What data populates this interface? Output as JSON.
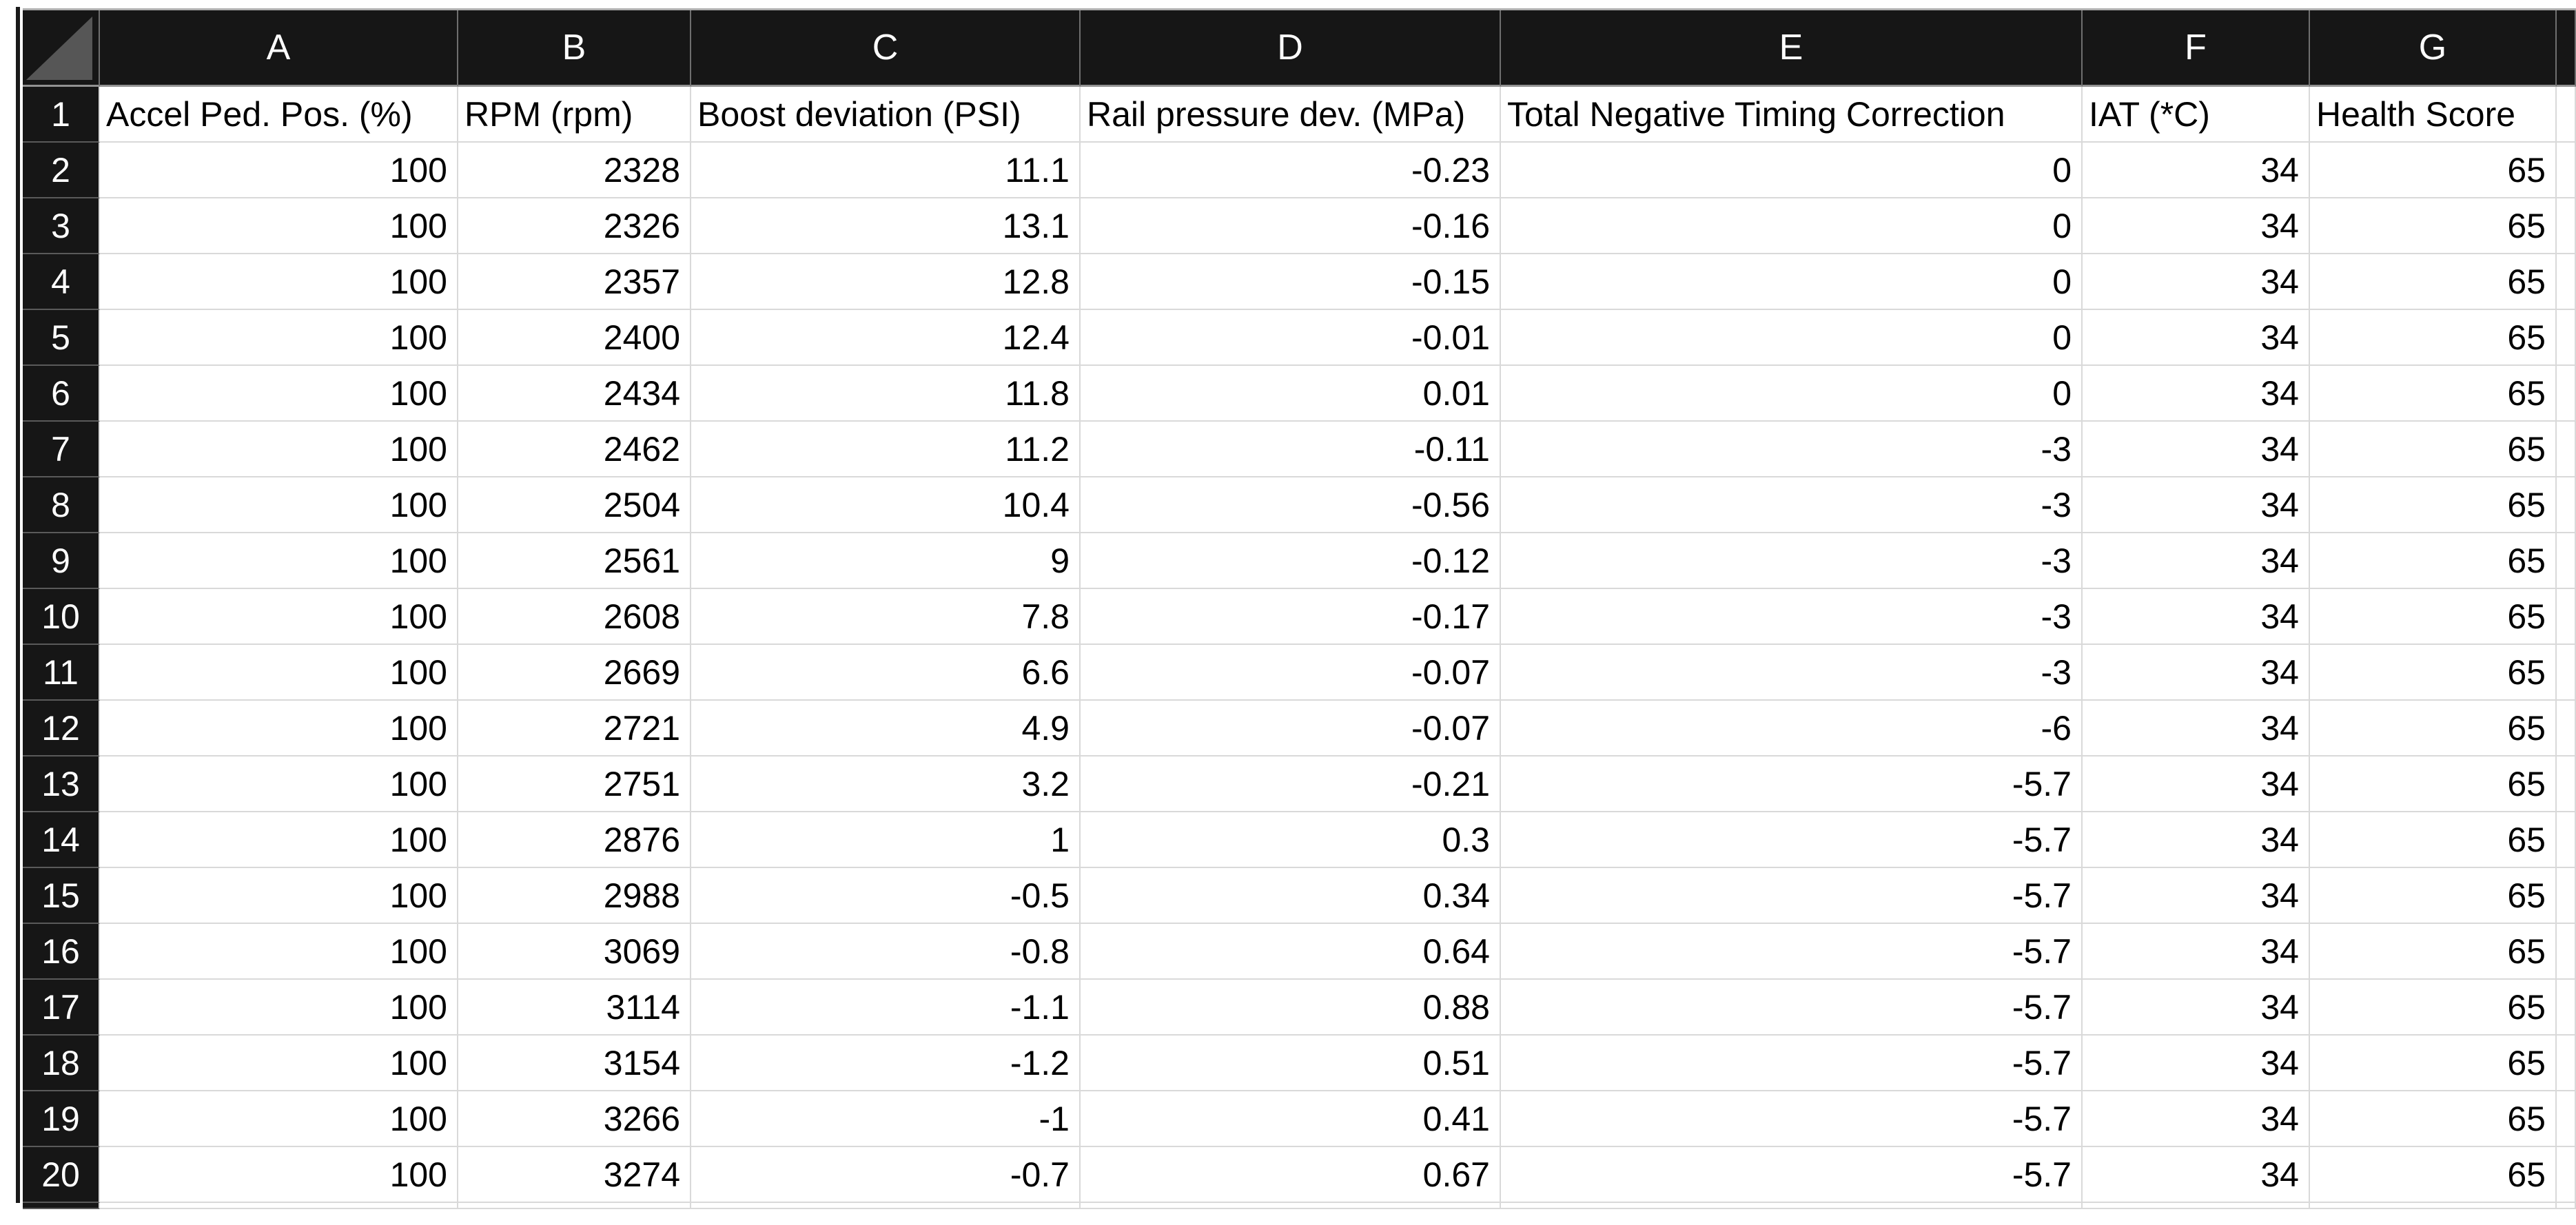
{
  "sheet": {
    "column_letters": [
      "A",
      "B",
      "C",
      "D",
      "E",
      "F",
      "G"
    ],
    "row_numbers": [
      "1",
      "2",
      "3",
      "4",
      "5",
      "6",
      "7",
      "8",
      "9",
      "10",
      "11",
      "12",
      "13",
      "14",
      "15",
      "16",
      "17",
      "18",
      "19",
      "20"
    ],
    "header_row": {
      "row_number": "1",
      "cells": [
        "Accel Ped. Pos. (%)",
        "RPM (rpm)",
        "Boost deviation (PSI)",
        "Rail pressure dev. (MPa)",
        "Total Negative Timing Correction",
        "IAT (*C)",
        "Health Score"
      ]
    },
    "data_rows": [
      {
        "row_number": "2",
        "cells": [
          "100",
          "2328",
          "11.1",
          "-0.23",
          "0",
          "34",
          "65"
        ]
      },
      {
        "row_number": "3",
        "cells": [
          "100",
          "2326",
          "13.1",
          "-0.16",
          "0",
          "34",
          "65"
        ]
      },
      {
        "row_number": "4",
        "cells": [
          "100",
          "2357",
          "12.8",
          "-0.15",
          "0",
          "34",
          "65"
        ]
      },
      {
        "row_number": "5",
        "cells": [
          "100",
          "2400",
          "12.4",
          "-0.01",
          "0",
          "34",
          "65"
        ]
      },
      {
        "row_number": "6",
        "cells": [
          "100",
          "2434",
          "11.8",
          "0.01",
          "0",
          "34",
          "65"
        ]
      },
      {
        "row_number": "7",
        "cells": [
          "100",
          "2462",
          "11.2",
          "-0.11",
          "-3",
          "34",
          "65"
        ]
      },
      {
        "row_number": "8",
        "cells": [
          "100",
          "2504",
          "10.4",
          "-0.56",
          "-3",
          "34",
          "65"
        ]
      },
      {
        "row_number": "9",
        "cells": [
          "100",
          "2561",
          "9",
          "-0.12",
          "-3",
          "34",
          "65"
        ]
      },
      {
        "row_number": "10",
        "cells": [
          "100",
          "2608",
          "7.8",
          "-0.17",
          "-3",
          "34",
          "65"
        ]
      },
      {
        "row_number": "11",
        "cells": [
          "100",
          "2669",
          "6.6",
          "-0.07",
          "-3",
          "34",
          "65"
        ]
      },
      {
        "row_number": "12",
        "cells": [
          "100",
          "2721",
          "4.9",
          "-0.07",
          "-6",
          "34",
          "65"
        ]
      },
      {
        "row_number": "13",
        "cells": [
          "100",
          "2751",
          "3.2",
          "-0.21",
          "-5.7",
          "34",
          "65"
        ]
      },
      {
        "row_number": "14",
        "cells": [
          "100",
          "2876",
          "1",
          "0.3",
          "-5.7",
          "34",
          "65"
        ]
      },
      {
        "row_number": "15",
        "cells": [
          "100",
          "2988",
          "-0.5",
          "0.34",
          "-5.7",
          "34",
          "65"
        ]
      },
      {
        "row_number": "16",
        "cells": [
          "100",
          "3069",
          "-0.8",
          "0.64",
          "-5.7",
          "34",
          "65"
        ]
      },
      {
        "row_number": "17",
        "cells": [
          "100",
          "3114",
          "-1.1",
          "0.88",
          "-5.7",
          "34",
          "65"
        ]
      },
      {
        "row_number": "18",
        "cells": [
          "100",
          "3154",
          "-1.2",
          "0.51",
          "-5.7",
          "34",
          "65"
        ]
      },
      {
        "row_number": "19",
        "cells": [
          "100",
          "3266",
          "-1",
          "0.41",
          "-5.7",
          "34",
          "65"
        ]
      },
      {
        "row_number": "20",
        "cells": [
          "100",
          "3274",
          "-0.7",
          "0.67",
          "-5.7",
          "34",
          "65"
        ]
      }
    ],
    "colors": {
      "header_background": "#161616",
      "header_text": "#ffffff",
      "cell_text": "#000000",
      "gridline": "#d9d9d9",
      "select_all_triangle": "#565656"
    }
  }
}
